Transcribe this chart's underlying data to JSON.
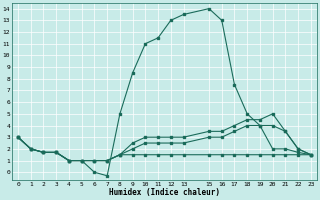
{
  "xlabel": "Humidex (Indice chaleur)",
  "bg_color": "#c8ebe8",
  "grid_color": "#ffffff",
  "line_color": "#1a6b5a",
  "xlim": [
    -0.5,
    23.5
  ],
  "ylim": [
    -0.7,
    14.5
  ],
  "xticks": [
    0,
    1,
    2,
    3,
    4,
    5,
    6,
    7,
    8,
    9,
    10,
    11,
    12,
    13,
    15,
    16,
    17,
    18,
    19,
    20,
    21,
    22,
    23
  ],
  "yticks": [
    0,
    1,
    2,
    3,
    4,
    5,
    6,
    7,
    8,
    9,
    10,
    11,
    12,
    13,
    14
  ],
  "series": [
    {
      "x": [
        0,
        1,
        2,
        3,
        4,
        5,
        6,
        7,
        8,
        9,
        10,
        11,
        12,
        13,
        15,
        16,
        17,
        18,
        19,
        20,
        21,
        22,
        23
      ],
      "y": [
        3,
        2,
        1.7,
        1.7,
        1,
        1,
        0,
        -0.3,
        5,
        8.5,
        11,
        11.5,
        13,
        13.5,
        14,
        13,
        7.5,
        5,
        4,
        2,
        2,
        1.7,
        1.5
      ]
    },
    {
      "x": [
        0,
        1,
        2,
        3,
        4,
        5,
        6,
        7,
        8,
        9,
        10,
        11,
        12,
        13,
        15,
        16,
        17,
        18,
        19,
        20,
        21,
        22,
        23
      ],
      "y": [
        3,
        2,
        1.7,
        1.7,
        1,
        1,
        1,
        1,
        1.5,
        2.5,
        3,
        3,
        3,
        3,
        3.5,
        3.5,
        4,
        4.5,
        4.5,
        5,
        3.5,
        2,
        1.5
      ]
    },
    {
      "x": [
        0,
        1,
        2,
        3,
        4,
        5,
        6,
        7,
        8,
        9,
        10,
        11,
        12,
        13,
        15,
        16,
        17,
        18,
        19,
        20,
        21,
        22,
        23
      ],
      "y": [
        3,
        2,
        1.7,
        1.7,
        1,
        1,
        1,
        1,
        1.5,
        2,
        2.5,
        2.5,
        2.5,
        2.5,
        3,
        3,
        3.5,
        4,
        4,
        4,
        3.5,
        2,
        1.5
      ]
    },
    {
      "x": [
        0,
        1,
        2,
        3,
        4,
        5,
        6,
        7,
        8,
        9,
        10,
        11,
        12,
        13,
        15,
        16,
        17,
        18,
        19,
        20,
        21,
        22,
        23
      ],
      "y": [
        3,
        2,
        1.7,
        1.7,
        1,
        1,
        1,
        1,
        1.5,
        1.5,
        1.5,
        1.5,
        1.5,
        1.5,
        1.5,
        1.5,
        1.5,
        1.5,
        1.5,
        1.5,
        1.5,
        1.5,
        1.5
      ]
    }
  ]
}
